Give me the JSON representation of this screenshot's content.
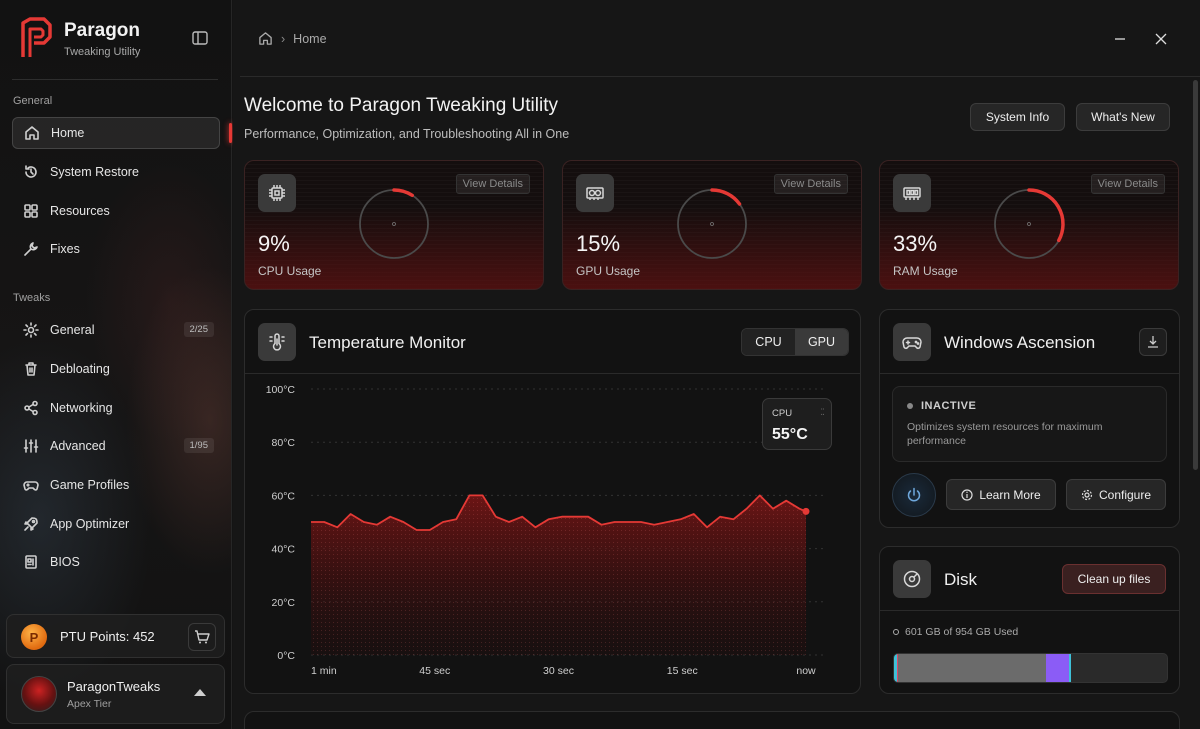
{
  "brand": {
    "name": "Paragon",
    "subtitle": "Tweaking Utility",
    "accent": "#e53935"
  },
  "sidebar": {
    "section_general": "General",
    "general_items": [
      {
        "label": "Home",
        "icon": "home-icon",
        "active": true
      },
      {
        "label": "System Restore",
        "icon": "restore-icon"
      },
      {
        "label": "Resources",
        "icon": "resources-icon"
      },
      {
        "label": "Fixes",
        "icon": "wrench-icon"
      }
    ],
    "section_tweaks": "Tweaks",
    "tweak_items": [
      {
        "label": "General",
        "icon": "gear-icon",
        "badge": "2/25"
      },
      {
        "label": "Debloating",
        "icon": "trash-icon"
      },
      {
        "label": "Networking",
        "icon": "network-icon"
      },
      {
        "label": "Advanced",
        "icon": "sliders-icon",
        "badge": "1/95"
      },
      {
        "label": "Game Profiles",
        "icon": "gamepad-icon"
      },
      {
        "label": "App Optimizer",
        "icon": "rocket-icon"
      },
      {
        "label": "BIOS",
        "icon": "chip-icon"
      }
    ],
    "points": {
      "coin": "P",
      "label": "PTU Points: 452"
    },
    "user": {
      "name": "ParagonTweaks",
      "tier": "Apex Tier"
    }
  },
  "header": {
    "breadcrumb": "Home"
  },
  "welcome": {
    "title": "Welcome to Paragon Tweaking Utility",
    "subtitle": "Performance, Optimization, and Troubleshooting All in One",
    "system_info_label": "System Info",
    "whats_new_label": "What's New"
  },
  "stats": [
    {
      "value": "9%",
      "fraction": 0.09,
      "label": "CPU Usage",
      "details": "View Details",
      "icon": "cpu-icon"
    },
    {
      "value": "15%",
      "fraction": 0.15,
      "label": "GPU Usage",
      "details": "View Details",
      "icon": "gpu-icon"
    },
    {
      "value": "33%",
      "fraction": 0.33,
      "label": "RAM Usage",
      "details": "View Details",
      "icon": "ram-icon"
    }
  ],
  "temperature": {
    "title": "Temperature Monitor",
    "toggle": [
      "CPU",
      "GPU"
    ],
    "selected": "GPU",
    "tooltip_label": "CPU",
    "tooltip_value": "55°C"
  },
  "chart_data": {
    "type": "area",
    "title": "Temperature Monitor",
    "y_ticks": [
      "100°C",
      "80°C",
      "60°C",
      "40°C",
      "20°C",
      "0°C"
    ],
    "x_ticks": [
      "1 min",
      "45 sec",
      "30 sec",
      "15 sec",
      "now"
    ],
    "ylim": [
      0,
      100
    ],
    "xlim": [
      60,
      0
    ],
    "grid": true,
    "series": [
      {
        "color": "#e53935",
        "x": [
          60,
          58.4,
          56.8,
          55.2,
          53.6,
          52,
          50.4,
          48.8,
          47.2,
          45.6,
          44,
          42.4,
          40.8,
          39.2,
          37.6,
          36,
          34.4,
          32.8,
          31.2,
          29.6,
          28,
          26.4,
          24.8,
          23.2,
          21.6,
          20,
          18.4,
          16.8,
          15.2,
          13.6,
          12,
          10.4,
          8.8,
          7.2,
          5.6,
          4,
          2.4,
          0.8,
          0
        ],
        "y": [
          50,
          50,
          48,
          53,
          50,
          49,
          52,
          50,
          47,
          47,
          50,
          51,
          60,
          60,
          52,
          50,
          52,
          48,
          51,
          52,
          52,
          52,
          49,
          50,
          50,
          50,
          49,
          50,
          51,
          53,
          48,
          52,
          51,
          55,
          60,
          55,
          58,
          55,
          54
        ]
      }
    ]
  },
  "ascension": {
    "title": "Windows Ascension",
    "status": "INACTIVE",
    "description": "Optimizes system resources for maximum performance",
    "learn_more": "Learn More",
    "configure": "Configure"
  },
  "disk": {
    "title": "Disk",
    "cleanup": "Clean up files",
    "usage": "601 GB of 954 GB Used",
    "segments": [
      {
        "fraction": 0.01,
        "color": "#3fc1d8"
      },
      {
        "fraction": 0.006,
        "color": "#d84a6a"
      },
      {
        "fraction": 0.54,
        "color": "#6b6b6b"
      },
      {
        "fraction": 0.085,
        "color": "#8b5cf6"
      },
      {
        "fraction": 0.006,
        "color": "#3fc1d8"
      }
    ]
  }
}
